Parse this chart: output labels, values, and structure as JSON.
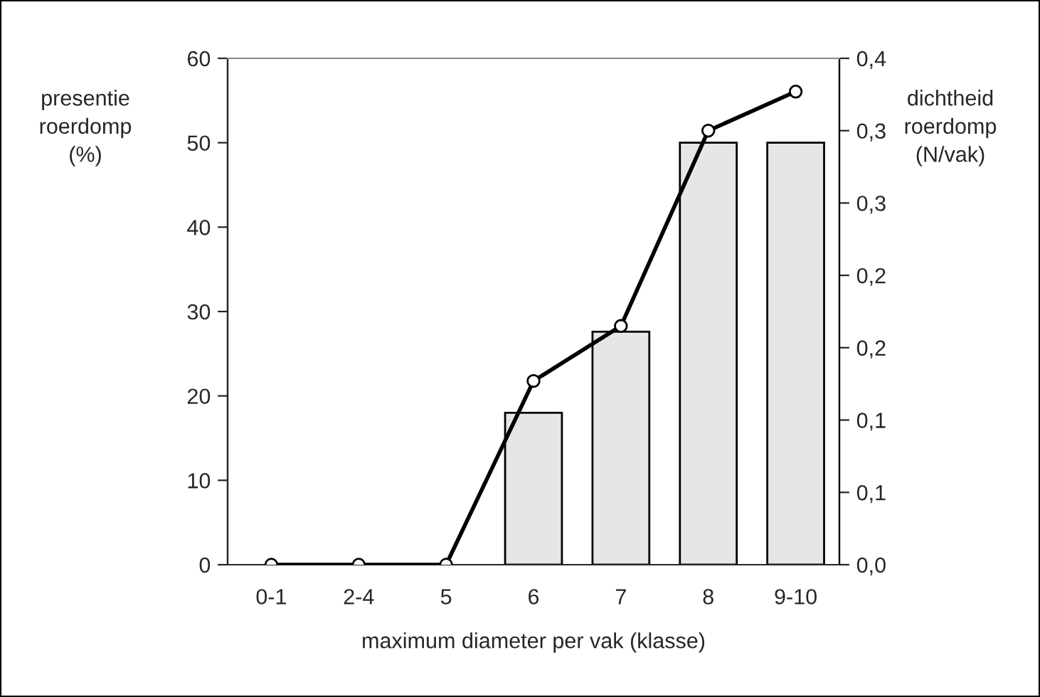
{
  "chart_data": {
    "type": "bar",
    "xlabel": "maximum diameter per vak (klasse)",
    "ylabel": "presentie\nroerdomp\n(%)",
    "y2label": "dichtheid\nroerdomp\n(N/vak)",
    "categories": [
      "0-1",
      "2-4",
      "5",
      "6",
      "7",
      "8",
      "9-10"
    ],
    "series": [
      {
        "color": "#e6e6e6",
        "values": [
          0,
          0,
          0,
          18,
          27.6,
          50,
          50
        ]
      },
      {
        "type": "line",
        "axis": "y2",
        "color": "#000000",
        "marker": "circle",
        "line_style": "solid",
        "values": [
          0,
          0,
          0,
          0.127,
          0.165,
          0.3,
          0.327
        ]
      }
    ],
    "ylim": [
      0,
      60
    ],
    "yticks": [
      0,
      10,
      20,
      30,
      40,
      50,
      60
    ],
    "y2lim": [
      0,
      0.35
    ],
    "y2ticks": [
      {
        "value": 0,
        "label": "0,0"
      },
      {
        "value": 0.05,
        "label": "0,1"
      },
      {
        "value": 0.1,
        "label": "0,1"
      },
      {
        "value": 0.15,
        "label": "0,2"
      },
      {
        "value": 0.2,
        "label": "0,2"
      },
      {
        "value": 0.25,
        "label": "0,3"
      },
      {
        "value": 0.3,
        "label": "0,3"
      },
      {
        "value": 0.35,
        "label": "0,4"
      }
    ],
    "grid": false,
    "legend": false
  }
}
